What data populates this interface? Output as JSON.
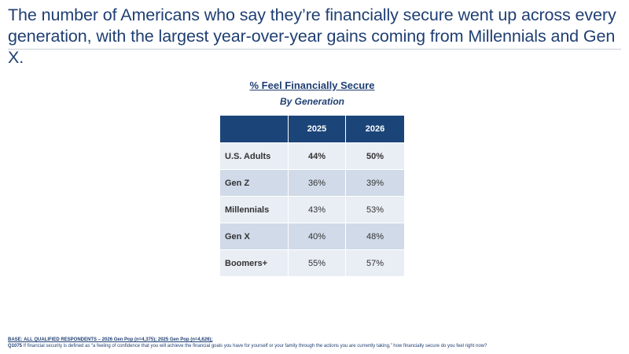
{
  "headline": "The number of Americans who say they’re financially secure went up across every generation, with the largest year-over-year gains coming from Millennials and Gen X.",
  "chart_data": {
    "type": "table",
    "title": "% Feel Financially Secure",
    "subtitle": "By Generation",
    "columns": [
      "2025",
      "2026"
    ],
    "rows": [
      {
        "label": "U.S. Adults",
        "values": [
          "44%",
          "50%"
        ],
        "bold": true
      },
      {
        "label": "Gen Z",
        "values": [
          "36%",
          "39%"
        ],
        "bold": false
      },
      {
        "label": "Millennials",
        "values": [
          "43%",
          "53%"
        ],
        "bold": false
      },
      {
        "label": "Gen X",
        "values": [
          "40%",
          "48%"
        ],
        "bold": false
      },
      {
        "label": "Boomers+",
        "values": [
          "55%",
          "57%"
        ],
        "bold": false
      }
    ],
    "header_color": "#1b4579",
    "row_colors": [
      "#e9edf4",
      "#d0dae8"
    ]
  },
  "footnote": {
    "base": "BASE: ALL QUALIFIED RESPONDENTS – 2026 Gen Pop (n=4,375); 2025 Gen Pop (n=4,626);",
    "question_label": "Q1075",
    "question_text": " If financial security is defined as “a feeling of confidence that you will achieve the financial goals you have for yourself or your family through the actions you are currently taking,” how financially secure do you feel right now?"
  }
}
